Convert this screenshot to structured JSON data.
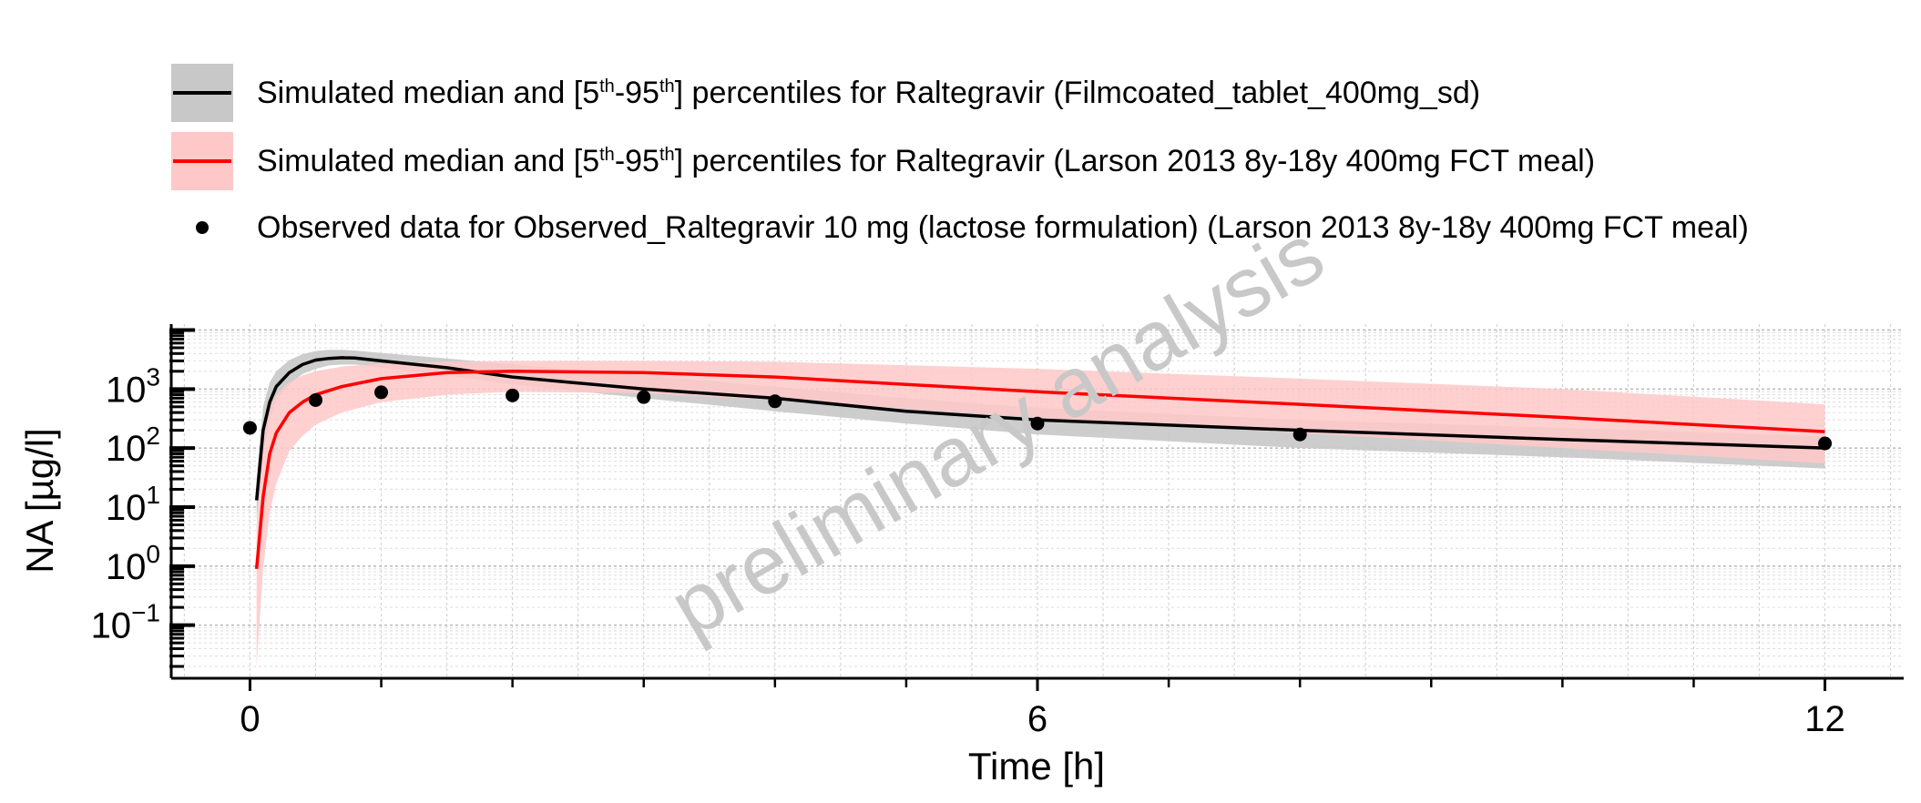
{
  "legend": {
    "entries": [
      {
        "pre": "Simulated median and [5",
        "sup1": "th",
        "mid": "-95",
        "sup2": "th",
        "post": "] percentiles for Raltegravir (Filmcoated_tablet_400mg_sd)",
        "line_color": "#000000",
        "band_color": "#c8c8c8",
        "kind": "band-line"
      },
      {
        "pre": "Simulated median and [5",
        "sup1": "th",
        "mid": "-95",
        "sup2": "th",
        "post": "] percentiles for Raltegravir (Larson 2013 8y-18y 400mg FCT meal)",
        "line_color": "#ff0000",
        "band_color": "#ffc8c8",
        "kind": "band-line"
      },
      {
        "pre": "Observed data for Observed_Raltegravir 10 mg (lactose formulation) (Larson 2013 8y-18y 400mg FCT meal)",
        "kind": "point",
        "point_color": "#000000"
      }
    ]
  },
  "watermark": "preliminary analysis",
  "chart_data": {
    "type": "line",
    "xlabel": "Time [h]",
    "ylabel": "NA [µg/l]",
    "xlim": [
      -0.6,
      12.6
    ],
    "ylim_log10": [
      -1.9,
      4.1
    ],
    "y_scale": "log",
    "grid": true,
    "x_ticks": [
      0,
      6,
      12
    ],
    "x_minor_ticks": [
      1,
      2,
      3,
      4,
      5,
      7,
      8,
      9,
      10,
      11
    ],
    "y_ticks": [
      {
        "exp": -1,
        "base": "10",
        "label": "−1"
      },
      {
        "exp": 0,
        "base": "10",
        "label": "0"
      },
      {
        "exp": 1,
        "base": "10",
        "label": "1"
      },
      {
        "exp": 2,
        "base": "10",
        "label": "2"
      },
      {
        "exp": 3,
        "base": "10",
        "label": "3"
      }
    ],
    "series": [
      {
        "color": "#000000",
        "band_color": "#c8c8c8",
        "x": [
          0.05,
          0.1,
          0.15,
          0.2,
          0.3,
          0.4,
          0.5,
          0.6,
          0.7,
          0.8,
          1.0,
          1.5,
          2.0,
          3.0,
          4.0,
          5.0,
          6.0,
          8.0,
          10.0,
          12.0
        ],
        "median": [
          13,
          200,
          600,
          1100,
          1900,
          2600,
          3100,
          3300,
          3400,
          3350,
          3000,
          2300,
          1600,
          1000,
          700,
          420,
          300,
          200,
          140,
          100
        ],
        "p5": [
          6,
          80,
          300,
          650,
          1200,
          1800,
          2200,
          2500,
          2600,
          2600,
          2300,
          1700,
          1200,
          700,
          420,
          260,
          170,
          100,
          70,
          45
        ],
        "p95": [
          30,
          500,
          1300,
          2000,
          3100,
          3900,
          4400,
          4600,
          4600,
          4500,
          4100,
          3300,
          2600,
          1700,
          1100,
          700,
          480,
          300,
          220,
          160
        ]
      },
      {
        "color": "#ff0000",
        "band_color": "#ffc8c8",
        "x": [
          0.05,
          0.1,
          0.15,
          0.2,
          0.3,
          0.4,
          0.5,
          0.7,
          1.0,
          1.5,
          2.0,
          3.0,
          4.0,
          6.0,
          8.0,
          10.0,
          12.0
        ],
        "median": [
          0.9,
          15,
          80,
          180,
          400,
          600,
          800,
          1100,
          1500,
          1900,
          2000,
          1900,
          1600,
          900,
          550,
          330,
          190
        ],
        "p5": [
          0.02,
          0.9,
          8,
          25,
          90,
          160,
          250,
          400,
          600,
          800,
          900,
          850,
          650,
          330,
          180,
          100,
          55
        ],
        "p95": [
          5,
          150,
          500,
          800,
          1300,
          1700,
          2000,
          2400,
          2700,
          2900,
          3000,
          3000,
          2900,
          2200,
          1500,
          1000,
          550
        ]
      }
    ],
    "observed": {
      "color": "#000000",
      "x": [
        0,
        0.5,
        1.0,
        2.0,
        3.0,
        4.0,
        6.0,
        8.0,
        12.0
      ],
      "y": [
        220,
        650,
        880,
        780,
        730,
        620,
        260,
        170,
        120
      ]
    }
  }
}
